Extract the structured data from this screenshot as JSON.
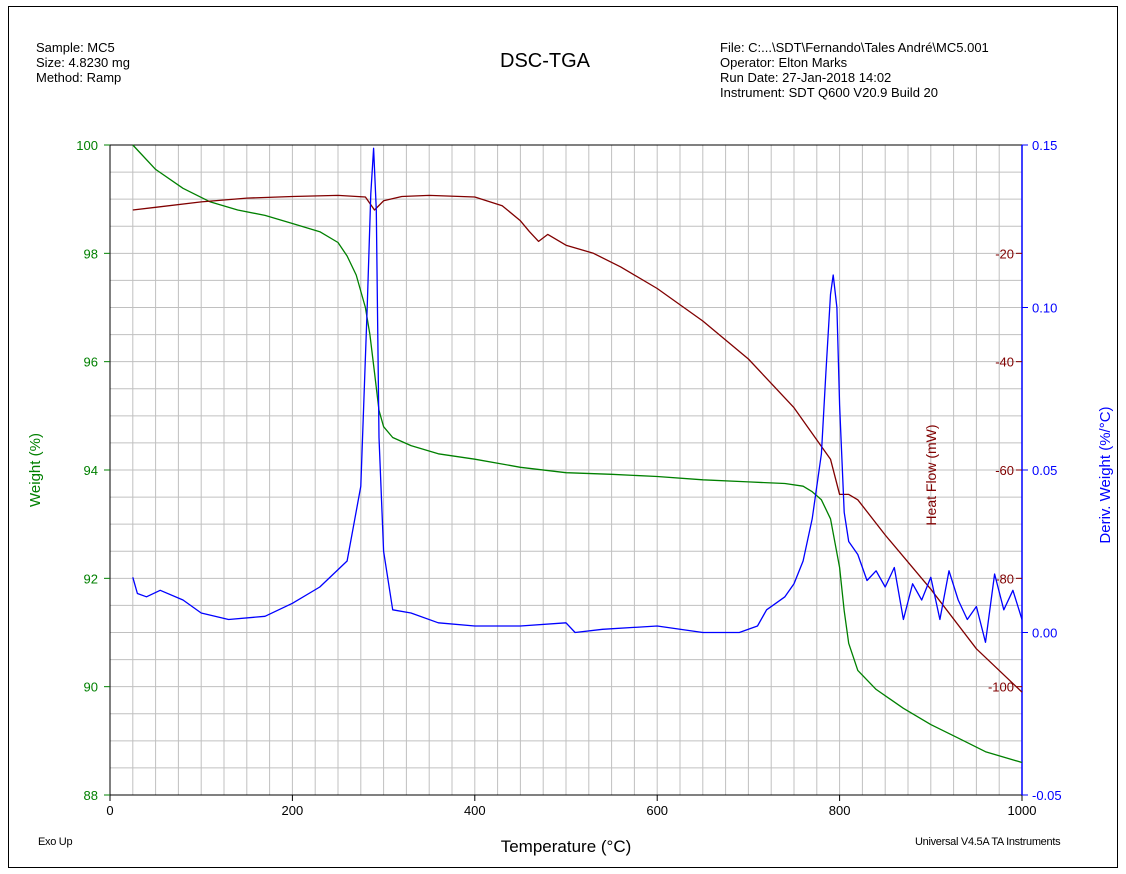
{
  "header": {
    "left": [
      "Sample: MC5",
      "Size:  4.8230 mg",
      "Method: Ramp"
    ],
    "right": [
      "File: C:...\\SDT\\Fernando\\Tales André\\MC5.001",
      "Operator: Elton Marks",
      "Run Date: 27-Jan-2018 14:02",
      "Instrument: SDT Q600 V20.9 Build 20"
    ]
  },
  "footer": {
    "left": "Exo Up",
    "right": "Universal V4.5A TA Instruments"
  },
  "colors": {
    "weight": "#008000",
    "heat_flow": "#800000",
    "deriv": "#0000ff",
    "grid": "#c0c0c0"
  },
  "chart_data": {
    "type": "line",
    "title": "DSC-TGA",
    "xlabel": "Temperature (°C)",
    "xlim": [
      0,
      1000
    ],
    "xticks": [
      "0",
      "200",
      "400",
      "600",
      "800",
      "1000"
    ],
    "axes": {
      "weight": {
        "label": "Weight (%)",
        "lim": [
          88,
          100
        ],
        "ticks": [
          "88",
          "90",
          "92",
          "94",
          "96",
          "98",
          "100"
        ]
      },
      "heat_flow": {
        "label": "Heat Flow (mW)",
        "lim": [
          -120,
          0
        ],
        "ticks": [
          "-20",
          "-40",
          "-60",
          "-80",
          "-100"
        ]
      },
      "deriv": {
        "label": "Deriv. Weight (%/°C)",
        "lim": [
          -0.05,
          0.15
        ],
        "ticks": [
          "-0.05",
          "0.00",
          "0.05",
          "0.10",
          "0.15"
        ]
      }
    },
    "series": [
      {
        "key": "weight",
        "x": [
          25,
          50,
          80,
          110,
          140,
          170,
          200,
          230,
          250,
          260,
          270,
          280,
          285,
          290,
          295,
          300,
          310,
          330,
          360,
          400,
          450,
          500,
          550,
          600,
          650,
          700,
          740,
          760,
          770,
          780,
          790,
          800,
          805,
          810,
          820,
          840,
          870,
          900,
          930,
          960,
          1000
        ],
        "y": [
          100,
          99.55,
          99.2,
          98.95,
          98.8,
          98.7,
          98.55,
          98.4,
          98.2,
          97.95,
          97.6,
          97.0,
          96.5,
          95.8,
          95.1,
          94.8,
          94.6,
          94.45,
          94.3,
          94.2,
          94.05,
          93.95,
          93.92,
          93.88,
          93.82,
          93.78,
          93.75,
          93.7,
          93.6,
          93.45,
          93.1,
          92.2,
          91.4,
          90.8,
          90.3,
          89.95,
          89.6,
          89.3,
          89.05,
          88.8,
          88.6
        ]
      },
      {
        "key": "heat_flow",
        "x": [
          25,
          50,
          100,
          150,
          200,
          250,
          280,
          290,
          300,
          320,
          350,
          400,
          430,
          450,
          460,
          470,
          480,
          500,
          530,
          560,
          600,
          650,
          700,
          750,
          790,
          800,
          810,
          820,
          850,
          900,
          950,
          1000
        ],
        "y": [
          -12,
          -11.5,
          -10.5,
          -9.8,
          -9.5,
          -9.3,
          -9.6,
          -12,
          -10.3,
          -9.5,
          -9.3,
          -9.6,
          -11.2,
          -14,
          -16,
          -17.8,
          -16.5,
          -18.5,
          -20,
          -22.5,
          -26.5,
          -32.5,
          -39.5,
          -48.5,
          -58,
          -64.5,
          -64.5,
          -65.5,
          -72,
          -82,
          -93,
          -101
        ]
      },
      {
        "key": "deriv",
        "x": [
          25,
          30,
          40,
          55,
          80,
          100,
          130,
          170,
          200,
          230,
          260,
          275,
          282,
          286,
          289,
          292,
          295,
          300,
          310,
          330,
          360,
          400,
          450,
          500,
          510,
          540,
          600,
          650,
          690,
          710,
          720,
          730,
          740,
          750,
          760,
          770,
          780,
          785,
          790,
          793,
          797,
          800,
          805,
          810,
          820,
          830,
          840,
          850,
          860,
          870,
          880,
          890,
          900,
          910,
          920,
          930,
          940,
          950,
          960,
          970,
          980,
          990,
          1000
        ],
        "y": [
          0.017,
          0.012,
          0.011,
          0.013,
          0.01,
          0.006,
          0.004,
          0.005,
          0.009,
          0.014,
          0.022,
          0.045,
          0.1,
          0.135,
          0.149,
          0.13,
          0.06,
          0.025,
          0.007,
          0.006,
          0.003,
          0.002,
          0.002,
          0.003,
          0.0,
          0.001,
          0.002,
          0.0,
          0.0,
          0.002,
          0.007,
          0.009,
          0.011,
          0.015,
          0.022,
          0.035,
          0.055,
          0.08,
          0.104,
          0.11,
          0.1,
          0.07,
          0.037,
          0.028,
          0.024,
          0.016,
          0.019,
          0.014,
          0.02,
          0.004,
          0.015,
          0.01,
          0.017,
          0.004,
          0.019,
          0.01,
          0.004,
          0.008,
          -0.003,
          0.018,
          0.007,
          0.013,
          0.004
        ]
      }
    ]
  }
}
